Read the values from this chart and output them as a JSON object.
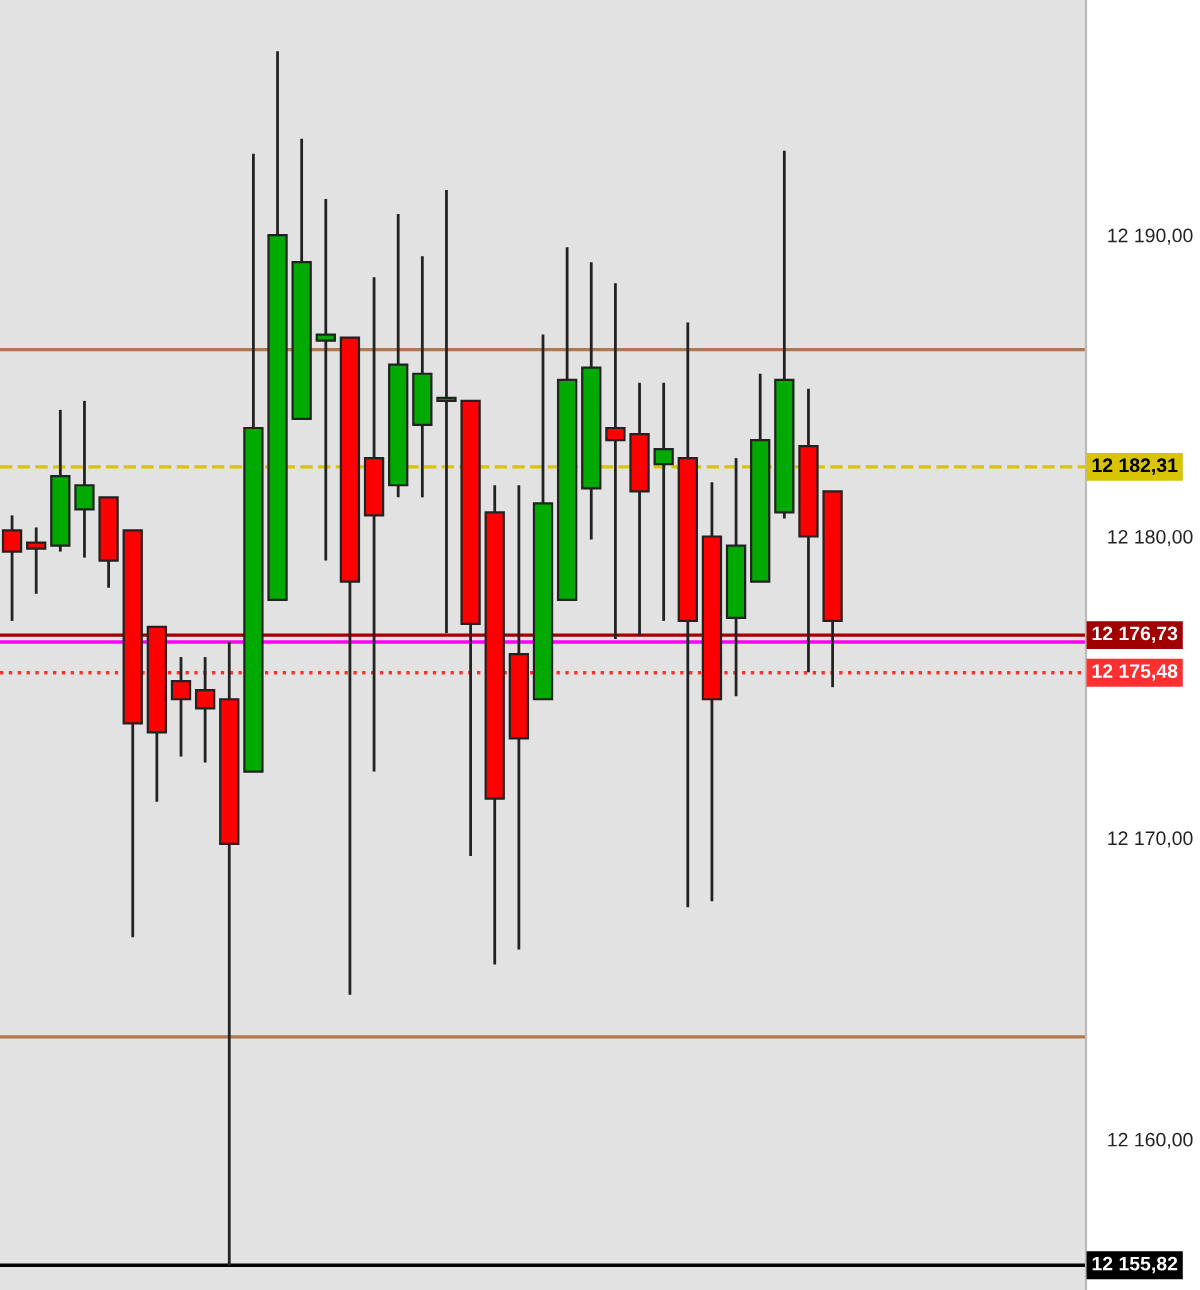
{
  "chart_data": {
    "type": "candlestick",
    "categories": [
      null,
      null,
      null,
      null,
      null,
      null,
      null,
      null,
      null,
      null,
      null,
      null,
      null,
      null,
      null,
      null,
      null,
      null,
      null,
      null,
      null,
      null,
      null,
      null,
      null,
      null,
      null,
      null,
      null,
      null,
      null,
      null,
      null,
      null,
      null,
      null,
      null,
      null,
      null,
      null,
      null,
      null,
      null,
      null,
      null
    ],
    "ohlc": [
      [
        12180.2,
        12180.7,
        12177.2,
        12179.5
      ],
      [
        12179.8,
        12180.3,
        12178.1,
        12179.6
      ],
      [
        12179.7,
        12184.2,
        12179.5,
        12182.0
      ],
      [
        12180.9,
        12184.5,
        12179.3,
        12181.7
      ],
      [
        12181.3,
        12181.3,
        12178.3,
        12179.2
      ],
      [
        12180.2,
        12180.2,
        12166.7,
        12173.8
      ],
      [
        12177.0,
        12177.0,
        12171.2,
        12173.5
      ],
      [
        12175.2,
        12176.0,
        12172.7,
        12174.6
      ],
      [
        12174.9,
        12176.0,
        12172.5,
        12174.3
      ],
      [
        12174.6,
        12176.5,
        12155.8,
        12169.8
      ],
      [
        12172.2,
        12192.7,
        12172.2,
        12183.6
      ],
      [
        12177.9,
        12196.1,
        12177.9,
        12190.0
      ],
      [
        12183.9,
        12193.2,
        12183.9,
        12189.1
      ],
      [
        12186.5,
        12191.2,
        12179.2,
        12186.7
      ],
      [
        12186.6,
        12186.6,
        12164.8,
        12178.5
      ],
      [
        12182.6,
        12188.6,
        12172.2,
        12180.7
      ],
      [
        12181.7,
        12190.7,
        12181.3,
        12185.7
      ],
      [
        12183.7,
        12189.3,
        12181.3,
        12185.4
      ],
      [
        12184.5,
        12191.5,
        12176.8,
        12184.6
      ],
      [
        12184.5,
        12184.5,
        12169.4,
        12177.1
      ],
      [
        12180.8,
        12181.7,
        12165.8,
        12171.3
      ],
      [
        12176.1,
        12181.7,
        12166.3,
        12173.3
      ],
      [
        12174.6,
        12186.7,
        12174.6,
        12181.1
      ],
      [
        12177.9,
        12189.6,
        12177.9,
        12185.2
      ],
      [
        12181.6,
        12189.1,
        12179.9,
        12185.6
      ],
      [
        12183.6,
        12188.4,
        12176.6,
        12183.2
      ],
      [
        12183.4,
        12185.1,
        12176.7,
        12181.5
      ],
      [
        12182.4,
        12185.1,
        12177.2,
        12182.9
      ],
      [
        12182.6,
        12187.1,
        12167.7,
        12177.2
      ],
      [
        12180.0,
        12181.8,
        12167.9,
        12174.6
      ],
      [
        12177.3,
        12182.6,
        12174.7,
        12179.7
      ],
      [
        12178.5,
        12185.4,
        12178.5,
        12183.2
      ],
      [
        12180.8,
        12192.8,
        12180.6,
        12185.2
      ],
      [
        12183.0,
        12184.9,
        12175.5,
        12180.0
      ],
      [
        12181.5,
        12181.5,
        12175.0,
        12177.2
      ],
      null,
      null,
      null,
      null,
      null,
      null,
      null,
      null,
      null,
      null
    ],
    "colors": [
      "#ff0000",
      "#ff0000",
      "#00aa00",
      "#00aa00",
      "#ff0000",
      "#ff0000",
      "#ff0000",
      "#ff0000",
      "#ff0000",
      "#ff0000",
      "#00aa00",
      "#00aa00",
      "#00aa00",
      "#00aa00",
      "#ff0000",
      "#ff0000",
      "#00aa00",
      "#00aa00",
      "#00aa00",
      "#ff0000",
      "#ff0000",
      "#ff0000",
      "#00aa00",
      "#00aa00",
      "#00aa00",
      "#ff0000",
      "#ff0000",
      "#00aa00",
      "#ff0000",
      "#ff0000",
      "#00aa00",
      "#00aa00",
      "#00aa00",
      "#ff0000",
      "#ff0000",
      null,
      null,
      null,
      null,
      null,
      null,
      null,
      null,
      null,
      null
    ],
    "ylim": [
      12155.0,
      12197.8
    ],
    "yticks": [
      {
        "value": 12160,
        "label": "12 160,00"
      },
      {
        "value": 12170,
        "label": "12 170,00"
      },
      {
        "value": 12180,
        "label": "12 180,00"
      },
      {
        "value": 12190,
        "label": "12 190,00"
      }
    ],
    "ref_lines": [
      {
        "axis": "y",
        "value": 12186.2,
        "color": "#b07850",
        "line_style": "solid"
      },
      {
        "axis": "y",
        "value": 12163.4,
        "color": "#b07850",
        "line_style": "solid"
      },
      {
        "axis": "y",
        "value": 12182.31,
        "label": "12 182,31",
        "color": "#d8c400",
        "line_style": "dashed"
      },
      {
        "axis": "y",
        "value": 12176.73,
        "label": "12 176,73",
        "color": "#a00000",
        "line_style": "solid"
      },
      {
        "axis": "y",
        "value": 12176.5,
        "color": "#ff00ff",
        "line_style": "solid"
      },
      {
        "axis": "y",
        "value": 12175.48,
        "label": "12 175,48",
        "color": "#ff3030",
        "line_style": "dotted"
      },
      {
        "axis": "y",
        "value": 12155.82,
        "label": "12 155,82",
        "color": "#000000",
        "line_style": "solid"
      }
    ],
    "tick_labels": "y",
    "grid": false
  }
}
